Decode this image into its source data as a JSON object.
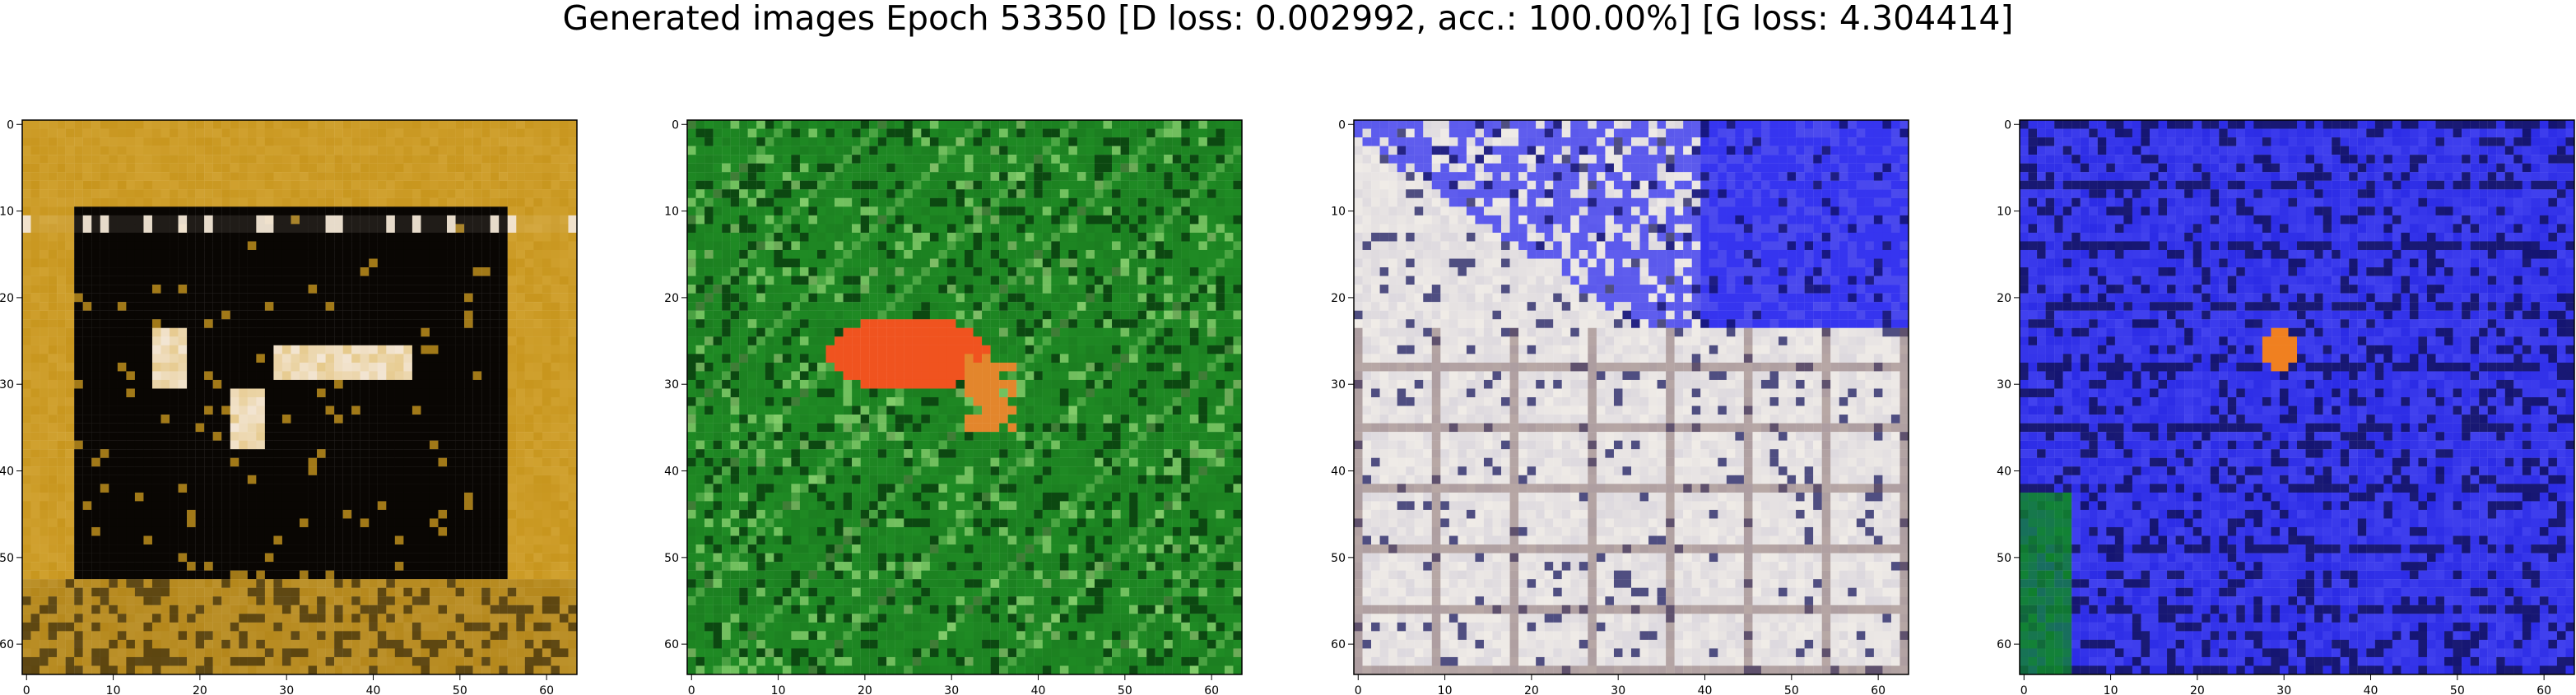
{
  "figure": {
    "title": "Generated images Epoch 53350 [D loss: 0.002992, acc.: 100.00%] [G loss: 4.304414]"
  },
  "axes_ticks": {
    "x": [
      "0",
      "10",
      "20",
      "30",
      "40",
      "50",
      "60"
    ],
    "y": [
      "0",
      "10",
      "20",
      "30",
      "40",
      "50",
      "60"
    ]
  },
  "panels": [
    {
      "name": "gold-frame-black-center",
      "palette": {
        "base": "#c8961e",
        "dark": "#050302",
        "light": "#f3e6d5",
        "accent": "#d9ad42"
      }
    },
    {
      "name": "green-field-red-blob",
      "palette": {
        "base": "#1f8b24",
        "dark": "#06310a",
        "light": "#9fe07f",
        "accent": "#f0531f"
      }
    },
    {
      "name": "white-blue-noise",
      "palette": {
        "base": "#dcd8de",
        "dark": "#0a0a55",
        "light": "#f2eee8",
        "accent": "#2f2ef0"
      }
    },
    {
      "name": "blue-field-orange-dot",
      "palette": {
        "base": "#2c2ce6",
        "dark": "#0b0b45",
        "light": "#6a6aff",
        "accent": "#f08020"
      }
    }
  ],
  "chart_data": {
    "type": "image-grid",
    "title": "Generated images Epoch 53350 [D loss: 0.002992, acc.: 100.00%] [G loss: 4.304414]",
    "image_shape": [
      64,
      64
    ],
    "xlim": [
      0,
      63
    ],
    "ylim": [
      63,
      0
    ],
    "xticks": [
      0,
      10,
      20,
      30,
      40,
      50,
      60
    ],
    "yticks": [
      0,
      10,
      20,
      30,
      40,
      50,
      60
    ],
    "count": 4
  }
}
